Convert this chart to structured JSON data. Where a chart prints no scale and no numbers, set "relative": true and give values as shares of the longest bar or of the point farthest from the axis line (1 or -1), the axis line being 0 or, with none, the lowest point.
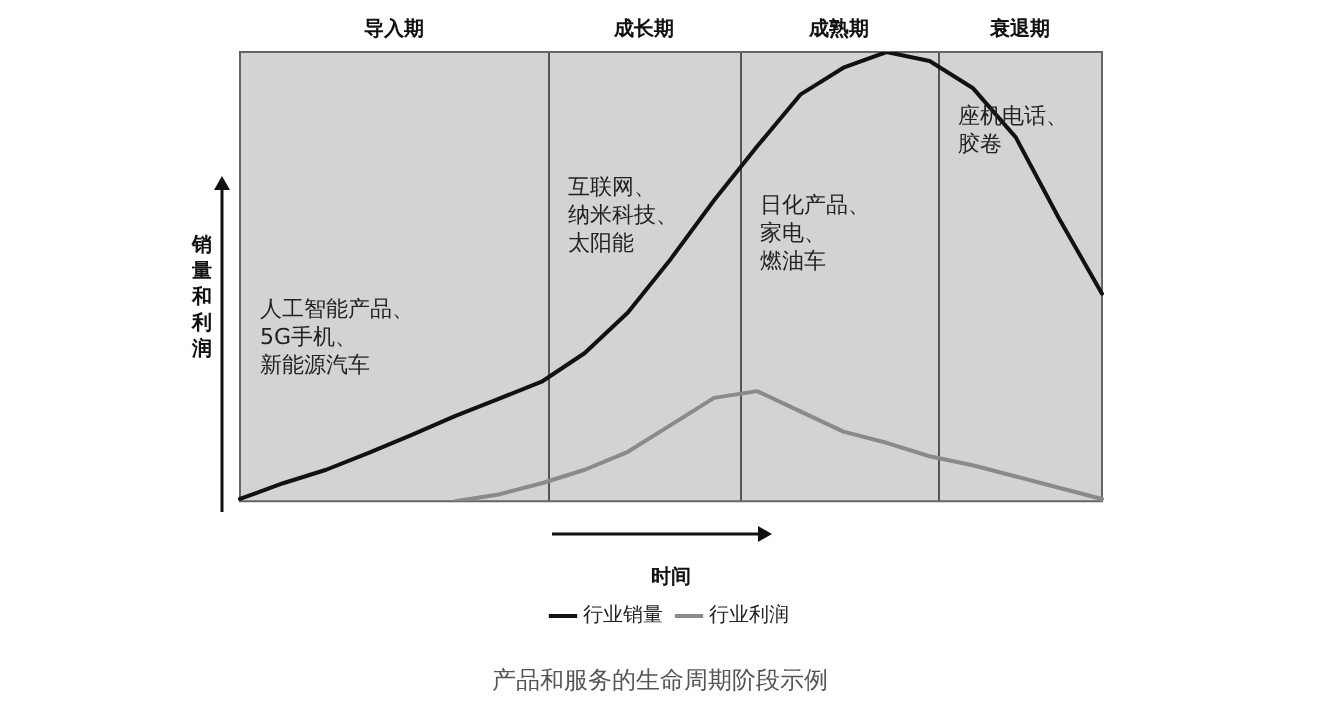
{
  "chart_data": {
    "type": "line",
    "relative": true,
    "xlabel": "时间",
    "ylabel": "销量和利润",
    "grid": false,
    "legend": "bottom",
    "marker": "none",
    "line_style": "solid",
    "categories": [
      null,
      null,
      null,
      null,
      null,
      null,
      null,
      null,
      null,
      null,
      null,
      null,
      null,
      null,
      null,
      null,
      null,
      null,
      null,
      null,
      null
    ],
    "series": [
      {
        "name": "行业销量",
        "color": "#111111",
        "values": [
          0.005,
          0.04,
          0.07,
          0.108,
          0.148,
          0.19,
          0.228,
          0.266,
          0.33,
          0.42,
          0.54,
          0.67,
          0.79,
          0.905,
          0.965,
          1.0,
          0.98,
          0.92,
          0.81,
          0.63,
          0.462
        ]
      },
      {
        "name": "行业利润",
        "color": "#8a8a8a",
        "values": [
          null,
          null,
          null,
          null,
          null,
          0,
          0.015,
          0.04,
          0.07,
          0.11,
          0.17,
          0.23,
          0.245,
          0.2,
          0.155,
          0.13,
          0.1,
          0.08,
          0.055,
          0.03,
          0.005
        ]
      }
    ],
    "annotations": [
      "导入期",
      "成长期",
      "成熟期",
      "衰退期",
      "人工智能产品、5G手机、新能源汽车",
      "互联网、纳米科技、太阳能",
      "日化产品、家电、燃油车",
      "座机电话、胶卷",
      "产品和服务的生命周期阶段示例"
    ]
  }
}
